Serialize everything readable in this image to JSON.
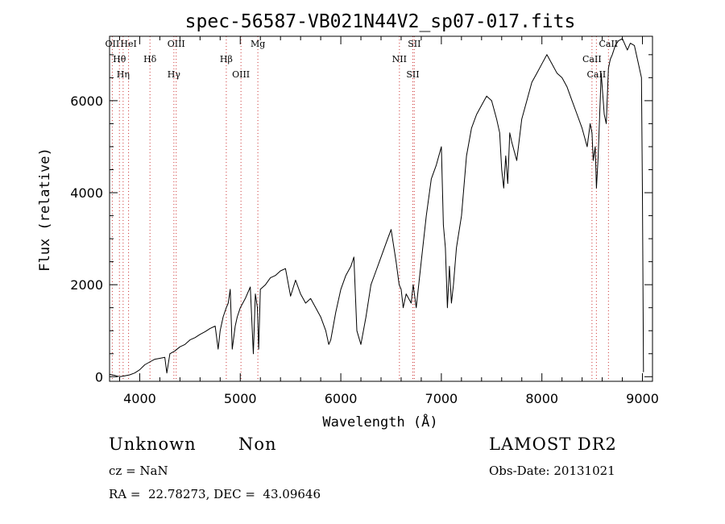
{
  "chart_data": {
    "type": "line",
    "title": "spec-56587-VB021N44V2_sp07-017.fits",
    "xlabel": "Wavelength (Å)",
    "ylabel": "Flux (relative)",
    "xlim": [
      3700,
      9100
    ],
    "ylim": [
      -100,
      7400
    ],
    "xticks": [
      4000,
      5000,
      6000,
      7000,
      8000,
      9000
    ],
    "yticks": [
      0,
      2000,
      4000,
      6000
    ],
    "grid": false,
    "series": [
      {
        "x": [
          3700,
          3750,
          3800,
          3850,
          3900,
          3950,
          4000,
          4050,
          4100,
          4150,
          4200,
          4250,
          4270,
          4300,
          4350,
          4400,
          4450,
          4500,
          4550,
          4600,
          4650,
          4700,
          4750,
          4780,
          4800,
          4830,
          4861,
          4880,
          4900,
          4920,
          4950,
          4970,
          5000,
          5050,
          5100,
          5130,
          5150,
          5170,
          5183,
          5200,
          5250,
          5300,
          5350,
          5400,
          5450,
          5500,
          5550,
          5600,
          5650,
          5700,
          5750,
          5800,
          5850,
          5880,
          5900,
          5950,
          6000,
          6050,
          6100,
          6130,
          6160,
          6200,
          6250,
          6300,
          6350,
          6400,
          6450,
          6500,
          6550,
          6580,
          6600,
          6620,
          6650,
          6700,
          6720,
          6750,
          6800,
          6850,
          6900,
          6950,
          7000,
          7020,
          7040,
          7060,
          7080,
          7100,
          7120,
          7150,
          7200,
          7250,
          7300,
          7350,
          7400,
          7450,
          7500,
          7550,
          7580,
          7600,
          7620,
          7640,
          7660,
          7680,
          7700,
          7750,
          7800,
          7850,
          7900,
          7950,
          8000,
          8050,
          8100,
          8150,
          8200,
          8250,
          8300,
          8350,
          8400,
          8450,
          8480,
          8498,
          8510,
          8530,
          8542,
          8560,
          8590,
          8620,
          8640,
          8662,
          8680,
          8700,
          8730,
          8760,
          8800,
          8850,
          8880,
          8920,
          8950,
          8990,
          9000,
          9010
        ],
        "y": [
          50,
          30,
          0,
          20,
          40,
          80,
          150,
          260,
          320,
          380,
          400,
          420,
          80,
          500,
          560,
          650,
          700,
          800,
          850,
          920,
          980,
          1050,
          1100,
          600,
          1000,
          1300,
          1500,
          1600,
          1900,
          600,
          1100,
          1300,
          1500,
          1700,
          1950,
          500,
          1800,
          1500,
          600,
          1900,
          2000,
          2150,
          2200,
          2300,
          2350,
          1750,
          2100,
          1800,
          1600,
          1700,
          1500,
          1300,
          1000,
          700,
          800,
          1400,
          1900,
          2200,
          2400,
          2600,
          1000,
          700,
          1300,
          2000,
          2300,
          2600,
          2900,
          3200,
          2500,
          2000,
          1900,
          1500,
          1800,
          1600,
          2000,
          1500,
          2500,
          3500,
          4300,
          4600,
          5000,
          3300,
          2800,
          1500,
          2400,
          1600,
          2000,
          2800,
          3500,
          4800,
          5400,
          5700,
          5900,
          6100,
          6000,
          5600,
          5300,
          4500,
          4100,
          4800,
          4200,
          5300,
          5100,
          4700,
          5600,
          6000,
          6400,
          6600,
          6800,
          7000,
          6800,
          6600,
          6500,
          6300,
          6000,
          5700,
          5400,
          5000,
          5500,
          5300,
          4700,
          5000,
          4100,
          4800,
          6600,
          5700,
          5500,
          6700,
          6900,
          7000,
          7200,
          7300,
          7350,
          7100,
          7250,
          7200,
          6900,
          6500,
          4000,
          100
        ]
      }
    ],
    "lines": [
      {
        "label": "OII",
        "x": 3727
      },
      {
        "label": "Hθ",
        "x": 3798
      },
      {
        "label": "Hη",
        "x": 3835
      },
      {
        "label": "HeI",
        "x": 3889
      },
      {
        "label": "Hδ",
        "x": 4102
      },
      {
        "label": "Hγ",
        "x": 4340
      },
      {
        "label": "OIII",
        "x": 4363
      },
      {
        "label": "Hβ",
        "x": 4861
      },
      {
        "label": "OIII",
        "x": 5007
      },
      {
        "label": "Mg",
        "x": 5175
      },
      {
        "label": "NII",
        "x": 6583
      },
      {
        "label": "SII",
        "x": 6716
      },
      {
        "label": "SII",
        "x": 6731
      },
      {
        "label": "CaII",
        "x": 8498
      },
      {
        "label": "CaII",
        "x": 8542
      },
      {
        "label": "CaII",
        "x": 8662
      }
    ]
  },
  "info": {
    "class": "Unknown",
    "subclass": "Non",
    "survey": "LAMOST DR2",
    "cz": "cz = NaN",
    "obs_date": "Obs-Date: 20131021",
    "coords": "RA =  22.78273, DEC =  43.09646"
  },
  "colors": {
    "axes": "#000000",
    "line": "#000000",
    "marker_lines": "#cc3333"
  }
}
